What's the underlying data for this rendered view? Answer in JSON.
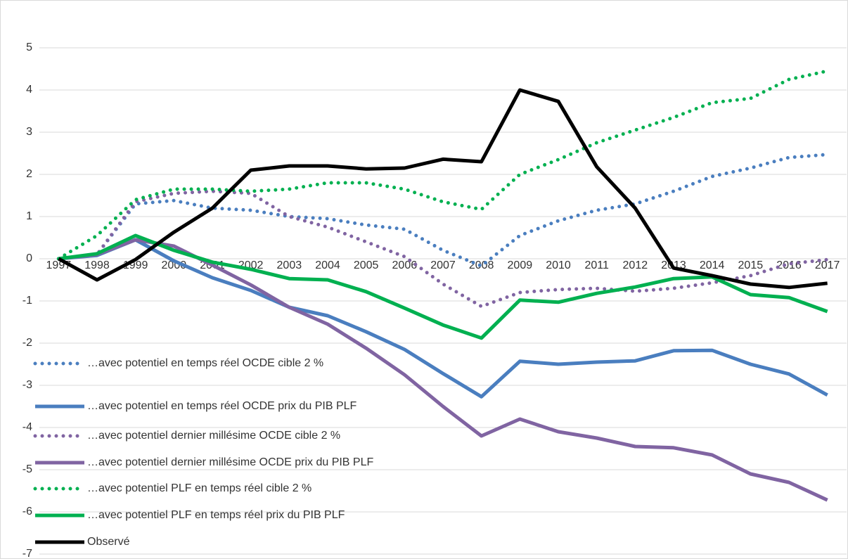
{
  "chart_data": {
    "type": "line",
    "categories": [
      "1997",
      "1998",
      "1999",
      "2000",
      "2001",
      "2002",
      "2003",
      "2004",
      "2005",
      "2006",
      "2007",
      "2008",
      "2009",
      "2010",
      "2011",
      "2012",
      "2013",
      "2014",
      "2015",
      "2016",
      "2017"
    ],
    "ylim": [
      -7,
      6
    ],
    "yticks": [
      -7,
      -6,
      -5,
      -4,
      -3,
      -2,
      -1,
      0,
      1,
      2,
      3,
      4,
      5
    ],
    "grid": true,
    "legend": "bottom-left",
    "series": [
      {
        "name": "…avec potentiel en temps réel OCDE cible 2 %",
        "color": "#4a7ebf",
        "style": "dotted",
        "values": [
          0,
          0.1,
          1.3,
          1.38,
          1.2,
          1.15,
          1.0,
          0.95,
          0.8,
          0.7,
          0.2,
          -0.17,
          0.55,
          0.9,
          1.15,
          1.3,
          1.6,
          1.95,
          2.15,
          2.4,
          2.47
        ]
      },
      {
        "name": "…avec potentiel en temps réel OCDE prix du PIB PLF",
        "color": "#4a7ebf",
        "style": "solid",
        "values": [
          0,
          0.08,
          0.45,
          -0.05,
          -0.45,
          -0.75,
          -1.15,
          -1.35,
          -1.73,
          -2.15,
          -2.72,
          -3.27,
          -2.43,
          -2.5,
          -2.45,
          -2.42,
          -2.18,
          -2.17,
          -2.5,
          -2.73,
          -3.23
        ]
      },
      {
        "name": "…avec potentiel dernier millésime OCDE cible 2 %",
        "color": "#8064a2",
        "style": "dotted",
        "values": [
          0,
          0.1,
          1.35,
          1.55,
          1.6,
          1.55,
          1.0,
          0.75,
          0.4,
          0.05,
          -0.6,
          -1.13,
          -0.8,
          -0.73,
          -0.7,
          -0.77,
          -0.7,
          -0.57,
          -0.4,
          -0.12,
          -0.02
        ]
      },
      {
        "name": "…avec potentiel dernier millésime OCDE prix du PIB PLF",
        "color": "#8064a2",
        "style": "solid",
        "values": [
          0,
          0.1,
          0.45,
          0.3,
          -0.15,
          -0.62,
          -1.15,
          -1.55,
          -2.12,
          -2.75,
          -3.5,
          -4.2,
          -3.8,
          -4.1,
          -4.25,
          -4.45,
          -4.48,
          -4.65,
          -5.1,
          -5.3,
          -5.72
        ]
      },
      {
        "name": "…avec potentiel PLF en temps réel cible 2 %",
        "color": "#00b050",
        "style": "dotted",
        "values": [
          0,
          0.55,
          1.4,
          1.65,
          1.65,
          1.6,
          1.65,
          1.8,
          1.8,
          1.65,
          1.35,
          1.17,
          2.0,
          2.35,
          2.75,
          3.05,
          3.35,
          3.7,
          3.8,
          4.25,
          4.45
        ]
      },
      {
        "name": "…avec potentiel PLF en temps réel prix du PIB PLF",
        "color": "#00b050",
        "style": "solid",
        "values": [
          0,
          0.12,
          0.55,
          0.2,
          -0.08,
          -0.25,
          -0.47,
          -0.5,
          -0.78,
          -1.17,
          -1.57,
          -1.88,
          -0.98,
          -1.03,
          -0.82,
          -0.67,
          -0.47,
          -0.43,
          -0.85,
          -0.92,
          -1.25
        ]
      },
      {
        "name": "Observé",
        "color": "#000000",
        "style": "solid",
        "values": [
          0,
          -0.5,
          -0.02,
          0.63,
          1.2,
          2.1,
          2.2,
          2.2,
          2.13,
          2.15,
          2.36,
          2.3,
          4.0,
          3.73,
          2.18,
          1.2,
          -0.22,
          -0.4,
          -0.6,
          -0.68,
          -0.58
        ]
      }
    ]
  }
}
